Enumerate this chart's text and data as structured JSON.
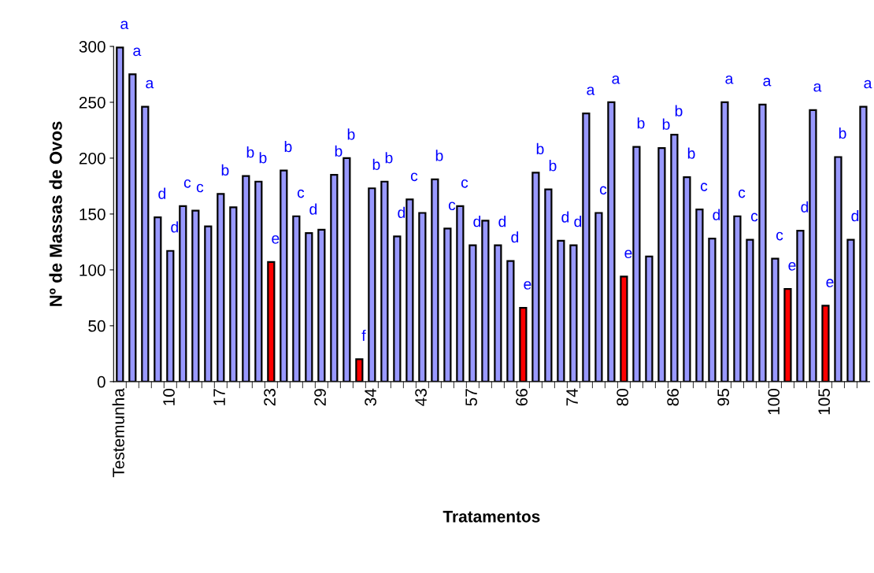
{
  "chart_data": {
    "type": "bar",
    "xlabel": "Tratamentos",
    "ylabel": "Nº de Massas de Ovos",
    "categories": [
      "Testemunha",
      null,
      null,
      null,
      "10",
      null,
      null,
      null,
      "17",
      null,
      null,
      null,
      "23",
      null,
      null,
      null,
      "29",
      null,
      null,
      null,
      "34",
      null,
      null,
      null,
      "43",
      null,
      null,
      null,
      "57",
      null,
      null,
      null,
      "66",
      null,
      null,
      null,
      "74",
      null,
      null,
      null,
      "80",
      null,
      null,
      null,
      "86",
      null,
      null,
      null,
      "95",
      null,
      null,
      null,
      "100",
      null,
      null,
      null,
      "105",
      null,
      null,
      null
    ],
    "values": [
      299,
      275,
      246,
      147,
      117,
      157,
      153,
      139,
      168,
      156,
      184,
      179,
      107,
      189,
      148,
      133,
      136,
      185,
      200,
      20,
      173,
      179,
      130,
      163,
      151,
      181,
      137,
      157,
      122,
      144,
      122,
      108,
      66,
      187,
      172,
      126,
      122,
      240,
      151,
      250,
      94,
      210,
      112,
      209,
      221,
      183,
      154,
      128,
      250,
      148,
      127,
      248,
      110,
      83,
      135,
      243,
      68,
      201,
      127,
      246
    ],
    "colors": [
      "#9999ff",
      "#9999ff",
      "#9999ff",
      "#9999ff",
      "#9999ff",
      "#9999ff",
      "#9999ff",
      "#9999ff",
      "#9999ff",
      "#9999ff",
      "#9999ff",
      "#9999ff",
      "#ff0000",
      "#9999ff",
      "#9999ff",
      "#9999ff",
      "#9999ff",
      "#9999ff",
      "#9999ff",
      "#ff0000",
      "#9999ff",
      "#9999ff",
      "#9999ff",
      "#9999ff",
      "#9999ff",
      "#9999ff",
      "#9999ff",
      "#9999ff",
      "#9999ff",
      "#9999ff",
      "#9999ff",
      "#9999ff",
      "#ff0000",
      "#9999ff",
      "#9999ff",
      "#9999ff",
      "#9999ff",
      "#9999ff",
      "#9999ff",
      "#9999ff",
      "#ff0000",
      "#9999ff",
      "#9999ff",
      "#9999ff",
      "#9999ff",
      "#9999ff",
      "#9999ff",
      "#9999ff",
      "#9999ff",
      "#9999ff",
      "#9999ff",
      "#9999ff",
      "#9999ff",
      "#ff0000",
      "#9999ff",
      "#9999ff",
      "#ff0000",
      "#9999ff",
      "#9999ff",
      "#9999ff"
    ],
    "value_labels": [
      "a",
      "a",
      "a",
      "d",
      "d",
      "c",
      "c",
      null,
      "b",
      null,
      "b",
      "b",
      "e",
      "b",
      "c",
      "d",
      null,
      "b",
      "b",
      "f",
      "b",
      "b",
      "d",
      "c",
      null,
      "b",
      "c",
      "c",
      "d",
      null,
      "d",
      "d",
      "e",
      "b",
      "b",
      "d",
      "d",
      "a",
      "c",
      "a",
      "e",
      "b",
      null,
      "b",
      "b",
      "b",
      "c",
      "d",
      "a",
      "c",
      "c",
      "a",
      "c",
      "e",
      "d",
      "a",
      "e",
      "b",
      "d",
      "a"
    ],
    "ylim": [
      0,
      300
    ],
    "yticks": [
      0,
      50,
      100,
      150,
      200,
      250,
      300
    ],
    "grid": false
  }
}
